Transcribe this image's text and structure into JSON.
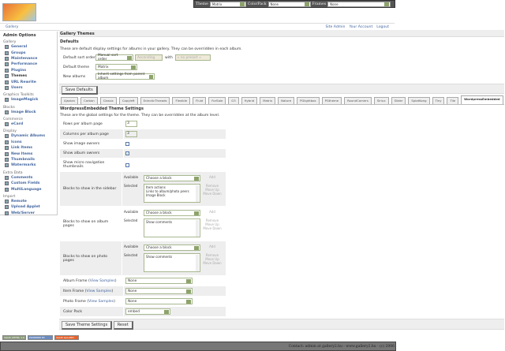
{
  "topbar": {
    "theme_label": "Theme",
    "theme_value": "Matrix",
    "colorpack_label": "ColorPack",
    "colorpack_value": "None",
    "frames_label": "Frames",
    "frames_value": "None"
  },
  "logo_text": "Gallery",
  "breadcrumb": {
    "home": "Gallery",
    "links": [
      "Site Admin",
      "Your Account",
      "Logout"
    ]
  },
  "sidebar": {
    "title": "Admin Options",
    "groups": [
      {
        "name": "Gallery",
        "items": [
          {
            "label": "General"
          },
          {
            "label": "Groups"
          },
          {
            "label": "Maintenance"
          },
          {
            "label": "Performance"
          },
          {
            "label": "Plugins"
          },
          {
            "label": "Themes",
            "current": true
          },
          {
            "label": "URL Rewrite"
          },
          {
            "label": "Users"
          }
        ]
      },
      {
        "name": "Graphics Toolkits",
        "items": [
          {
            "label": "ImageMagick"
          }
        ]
      },
      {
        "name": "Blocks",
        "items": [
          {
            "label": "Image Block"
          }
        ]
      },
      {
        "name": "Commerce",
        "items": [
          {
            "label": "eCard"
          }
        ]
      },
      {
        "name": "Display",
        "items": [
          {
            "label": "Dynamic Albums"
          },
          {
            "label": "Icons"
          },
          {
            "label": "Link Items"
          },
          {
            "label": "New Items"
          },
          {
            "label": "Thumbnails"
          },
          {
            "label": "Watermarks"
          }
        ]
      },
      {
        "name": "Extra Data",
        "items": [
          {
            "label": "Comments"
          },
          {
            "label": "Custom Fields"
          },
          {
            "label": "MultiLanguage"
          }
        ]
      },
      {
        "name": "Import",
        "items": [
          {
            "label": "Remote"
          },
          {
            "label": "Upload Applet"
          },
          {
            "label": "Web/Server"
          }
        ]
      }
    ]
  },
  "main": {
    "title": "Gallery Themes",
    "defaults_title": "Defaults",
    "defaults_desc": "These are default display settings for albums in your gallery. They can be overridden in each album.",
    "sort_label": "Default sort order",
    "sort_value": "Manual sort order",
    "sort_dir": "Ascending",
    "with_label": "with",
    "presort": "« no presort »",
    "theme_label": "Default theme",
    "theme_value": "Matrix",
    "new_albums_label": "New albums",
    "new_albums_value": "Inherit settings from parent album",
    "save_defaults": "Save Defaults",
    "tabs": [
      "Ajaxian",
      "Carbon",
      "Classic",
      "Copyleft",
      "EclecticThreads",
      "Flexible",
      "Fluid",
      "ForSale",
      "G3",
      "Hybrid",
      "Matrix",
      "Nature",
      "PGlightbox",
      "PGtheme",
      "RoundCorners",
      "Siriux",
      "Slider",
      "SplatKong",
      "Tiny",
      "Tile",
      "WordpressEmbedded"
    ],
    "active_tab": "WordpressEmbedded",
    "settings_title": "WordpressEmbedded Theme Settings",
    "settings_desc": "These are the global settings for the theme. They can be overridden at the album level.",
    "rows_label": "Rows per album page",
    "rows_value": "3",
    "cols_label": "Columns per album page",
    "cols_value": "3",
    "show_image_owners": "Show image owners",
    "show_album_owners": "Show album owners",
    "show_micro": "Show micro navigation thumbnails",
    "checks": {
      "image_owners": false,
      "album_owners": true,
      "micro": false
    },
    "available": "Available",
    "selected": "Selected",
    "choose": "Choose a block",
    "add": "Add",
    "remove": "Remove",
    "move_up": "Move Up",
    "move_down": "Move Down",
    "sidebar_blocks_label": "Blocks to show in the sidebar",
    "sidebar_blocks": [
      "Item actions",
      "Links to album/photo peers",
      "Image Block"
    ],
    "album_blocks_label": "Blocks to show on album pages",
    "album_blocks": [
      "Show comments"
    ],
    "photo_blocks_label": "Blocks to show on photo pages",
    "photo_blocks": [
      "Show comments"
    ],
    "album_frame": "Album Frame",
    "item_frame": "Item Frame",
    "photo_frame": "Photo Frame",
    "view_samples": "View Samples",
    "none": "None",
    "color_pack": "Color Pack",
    "color_pack_value": "embed",
    "save_theme": "Save Theme Settings",
    "reset": "Reset"
  },
  "badges": [
    "VALID XHTML 1.0",
    "POWERED BY",
    "VALID GALLERY"
  ],
  "footer": "Contact: admin at gallery2.hu - www.gallery2.hu - (c) 2006"
}
